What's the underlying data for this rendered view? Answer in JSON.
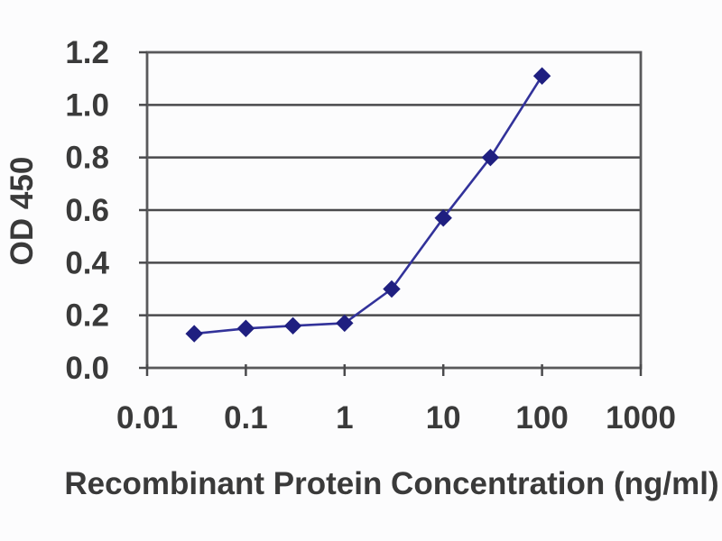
{
  "figure": {
    "background_color": "#fcfcfd",
    "text_color": "#3a3a3a"
  },
  "chart_data": {
    "type": "line",
    "title": "",
    "xlabel": "Recombinant Protein Concentration (ng/ml)",
    "ylabel": "OD 450",
    "x_scale": "log",
    "y_scale": "linear",
    "xlim": [
      0.01,
      1000
    ],
    "ylim": [
      0,
      1.2
    ],
    "x_tick_values": [
      0.01,
      0.1,
      1,
      10,
      100,
      1000
    ],
    "x_tick_labels": [
      "0.01",
      "0.1",
      "1",
      "10",
      "100",
      "1000"
    ],
    "y_tick_values": [
      0,
      0.2,
      0.4,
      0.6,
      0.8,
      1.0,
      1.2
    ],
    "y_tick_labels": [
      "0.0",
      "0.2",
      "0.4",
      "0.6",
      "0.8",
      "1.0",
      "1.2"
    ],
    "grid": "horizontal-major",
    "legend": "none",
    "series": [
      {
        "marker": "diamond",
        "x": [
          0.03,
          0.1,
          0.3,
          1,
          3,
          10,
          30,
          100
        ],
        "y": [
          0.13,
          0.15,
          0.16,
          0.17,
          0.3,
          0.57,
          0.8,
          1.11
        ]
      }
    ],
    "colors": {
      "line": "#32329a",
      "marker": "#1f1f80",
      "grid": "#4a4a4c",
      "border": "#59595b",
      "tick": "#4a4a4c"
    }
  }
}
